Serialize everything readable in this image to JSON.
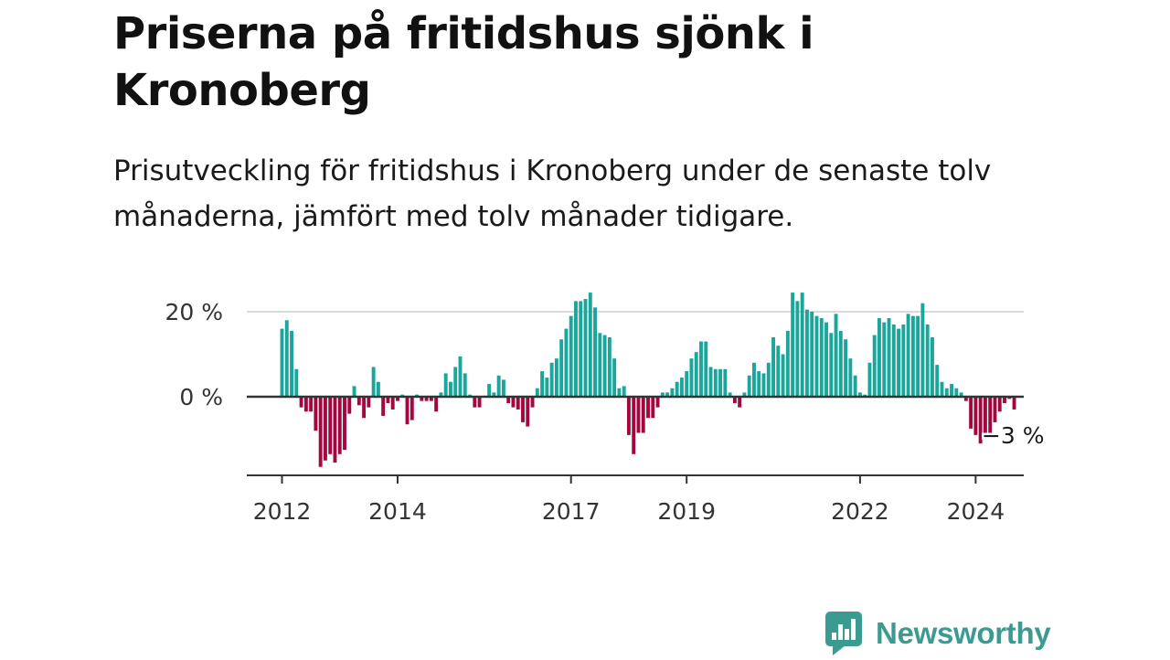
{
  "header": {
    "title": "Priserna på fritidshus sjönk i Kronoberg",
    "subtitle": "Prisutveckling för fritidshus i Kronoberg under de senaste tolv månaderna, jämfört med tolv månader tidigare."
  },
  "brand": {
    "name": "Newsworthy",
    "icon": "bar-chart-speech-bubble-icon",
    "color": "#3b9b90"
  },
  "colors": {
    "positive": "#1aa69a",
    "negative": "#a3073f",
    "grid": "#d9d9d9",
    "axis": "#333333"
  },
  "chart_data": {
    "type": "bar",
    "frequency": "monthly",
    "x_start": "2012-01",
    "ylim": [
      -18,
      25
    ],
    "y_ticks": [
      {
        "value": 0,
        "label": "0 %"
      },
      {
        "value": 20,
        "label": "20 %"
      }
    ],
    "x_ticks": [
      {
        "label": "2012",
        "date": "2012-01"
      },
      {
        "label": "2014",
        "date": "2014-01"
      },
      {
        "label": "2017",
        "date": "2017-01"
      },
      {
        "label": "2019",
        "date": "2019-01"
      },
      {
        "label": "2022",
        "date": "2022-01"
      },
      {
        "label": "2024",
        "date": "2024-01"
      }
    ],
    "end_label": "−3 %",
    "values": [
      16,
      18,
      15.5,
      6.5,
      -2.5,
      -3.5,
      -3.5,
      -8,
      -16.5,
      -15,
      -13.5,
      -15.5,
      -13.5,
      -12.5,
      -4,
      2.5,
      -2,
      -5,
      -2.5,
      7,
      3.5,
      -4.5,
      -1.5,
      -3,
      -1,
      0.5,
      -6.5,
      -5.5,
      0.5,
      -1,
      -1,
      -1,
      -3.5,
      1,
      5.5,
      3.5,
      7,
      9.5,
      5.5,
      0.5,
      -2.5,
      -2.5,
      0,
      3,
      1,
      5,
      4,
      -1.5,
      -2.5,
      -3,
      -6,
      -7,
      -2.5,
      2,
      6,
      4.5,
      8,
      9,
      13.5,
      16,
      19,
      22.5,
      22.5,
      23,
      24.5,
      21,
      15,
      14.5,
      14,
      9,
      2,
      2.5,
      -9,
      -13.5,
      -8.5,
      -8.5,
      -5,
      -5,
      -2.5,
      1,
      1,
      2,
      3.5,
      4.5,
      6,
      9,
      10.5,
      13,
      13,
      7,
      6.5,
      6.5,
      6.5,
      1,
      -1.5,
      -2.5,
      1,
      5,
      8,
      6,
      5.5,
      8,
      14,
      12,
      10,
      15.5,
      24.5,
      22.5,
      24.5,
      20.5,
      20,
      19,
      18.5,
      17.5,
      15,
      19.5,
      15.5,
      13.5,
      9,
      5,
      1,
      0.5,
      8,
      14.5,
      18.5,
      17.5,
      18.5,
      17,
      16,
      17,
      19.5,
      19,
      19,
      22,
      17,
      14,
      7.5,
      3.5,
      2,
      3,
      2,
      1,
      -1,
      -7.5,
      -9,
      -11,
      -9,
      -8.5,
      -6,
      -3.5,
      -1.5,
      -0.5,
      -3
    ]
  }
}
